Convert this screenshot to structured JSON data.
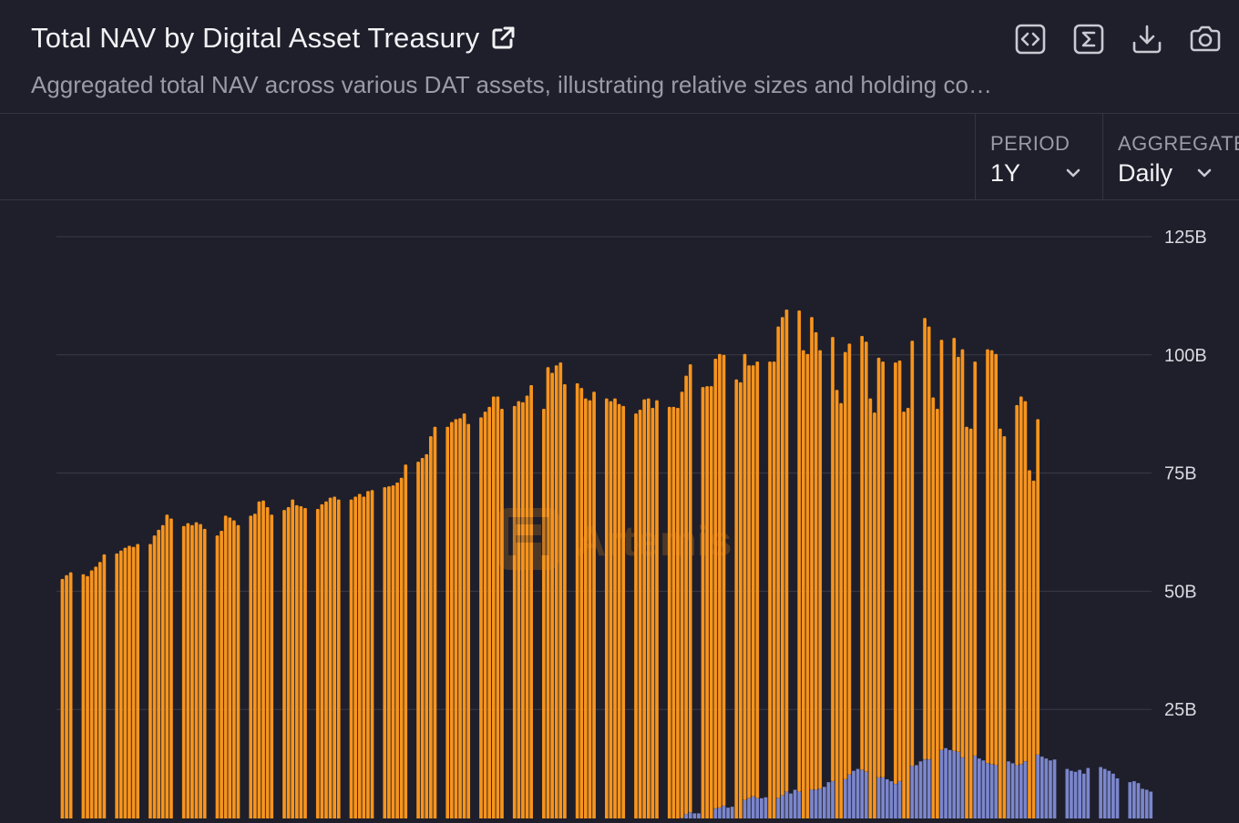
{
  "header": {
    "title": "Total NAV by Digital Asset Treasury",
    "subtitle": "Aggregated total NAV across various DAT assets, illustrating relative sizes and holding co…",
    "icons": [
      "external-link-icon",
      "embed-code-icon",
      "sigma-icon",
      "download-icon",
      "camera-icon"
    ]
  },
  "controls": {
    "period": {
      "label": "PERIOD",
      "value": "1Y"
    },
    "aggregate": {
      "label": "AGGREGATE",
      "value": "Daily"
    }
  },
  "watermark": "Artemis",
  "colors": {
    "background": "#1e1f2b",
    "series_orange": "#f7941d",
    "series_purple": "#7b86cc",
    "grid": "#3a3b46"
  },
  "chart_data": {
    "type": "bar",
    "stacked": true,
    "y_axis_position": "right",
    "ylim": [
      0,
      125
    ],
    "yticks": [
      {
        "value": 25,
        "label": "25B"
      },
      {
        "value": 50,
        "label": "50B"
      },
      {
        "value": 75,
        "label": "75B"
      },
      {
        "value": 100,
        "label": "100B"
      },
      {
        "value": 125,
        "label": "125B"
      }
    ],
    "grid": true,
    "series": [
      {
        "color": "#7b86cc",
        "values": [
          0,
          0,
          0,
          0,
          0,
          0,
          0,
          0,
          0,
          0,
          0,
          0,
          0,
          0,
          0,
          0,
          0,
          0,
          0,
          0,
          0,
          0,
          0,
          0,
          0,
          0,
          0,
          0,
          0,
          0,
          0,
          0,
          0,
          0,
          0,
          0,
          0,
          0,
          0,
          0,
          0,
          0,
          0,
          0,
          0,
          0,
          0,
          0,
          0,
          0,
          0,
          0,
          0,
          0,
          0,
          0,
          0,
          0,
          0,
          0,
          0,
          0,
          0,
          0,
          0,
          0,
          0,
          0,
          0,
          0,
          0,
          0,
          0,
          0,
          0,
          0,
          0,
          0,
          0,
          0,
          0,
          0,
          0,
          0,
          0,
          0,
          0,
          0,
          0,
          0,
          0,
          0,
          0,
          0,
          0,
          0,
          0,
          0,
          0,
          0,
          0,
          0,
          0,
          0,
          0,
          0,
          0,
          0,
          0,
          0,
          0,
          0,
          0,
          0,
          0,
          0,
          0,
          0,
          0,
          0,
          0,
          0,
          0,
          0,
          0,
          0,
          0,
          0,
          0,
          0,
          0,
          0,
          0,
          0,
          0,
          0,
          0,
          0,
          0,
          0,
          0,
          0,
          0,
          0,
          0,
          0,
          0,
          0,
          0,
          2.0,
          2.8,
          3.2,
          3.0,
          3.0,
          0,
          0,
          0,
          4.0,
          4.2,
          4.6,
          4.2,
          4.4,
          0,
          0,
          5.8,
          6.2,
          6.6,
          6.2,
          6.2,
          6.4,
          0,
          0,
          6.2,
          6.8,
          7.6,
          7.2,
          8.0,
          7.6,
          0,
          0,
          8.0,
          8.0,
          8.2,
          8.6,
          9.6,
          9.8,
          0,
          0,
          10.2,
          11.2,
          12.0,
          12.4,
          12.2,
          11.8,
          0,
          0,
          10.6,
          10.6,
          10.2,
          9.8,
          9.2,
          9.8,
          0,
          0,
          13.0,
          13.2,
          14.0,
          14.4,
          14.4,
          0,
          0,
          16.4,
          16.8,
          16.4,
          16.2,
          16.0,
          14.8,
          0,
          0,
          15.2,
          14.6,
          14.2,
          13.6,
          13.4,
          13.2,
          0,
          0,
          14.0,
          13.6,
          13.2,
          13.4,
          14.0,
          0,
          0,
          15.4,
          15.0,
          14.6,
          14.2,
          14.4,
          0,
          0,
          12.4,
          12.0,
          11.8,
          12.2,
          11.4,
          12.6,
          0,
          0,
          12.8,
          12.4,
          12.0,
          11.4,
          10.4,
          0,
          0,
          9.6,
          9.8,
          9.4,
          8.2,
          8.0,
          7.6
        ]
      },
      {
        "color": "#f7941d",
        "values": [
          0,
          52.6,
          53.4,
          54.0,
          0,
          0,
          53.6,
          53.2,
          54.4,
          55.2,
          56.2,
          57.8,
          0,
          0,
          58.0,
          58.6,
          59.2,
          59.6,
          59.4,
          60.0,
          0,
          0,
          60.0,
          61.8,
          63.0,
          64.0,
          66.2,
          65.4,
          0,
          0,
          63.8,
          64.4,
          64.0,
          64.6,
          64.2,
          63.2,
          0,
          0,
          61.8,
          62.8,
          66.0,
          65.6,
          65.0,
          64.0,
          0,
          0,
          66.0,
          66.4,
          69.0,
          69.2,
          67.8,
          66.2,
          0,
          0,
          67.2,
          67.8,
          69.4,
          68.2,
          68.0,
          67.6,
          0,
          0,
          67.4,
          68.4,
          69.0,
          69.8,
          70.0,
          69.4,
          0,
          0,
          69.4,
          70.0,
          70.6,
          70.0,
          71.2,
          71.4,
          0,
          0,
          72.0,
          72.2,
          72.4,
          73.0,
          74.0,
          76.8,
          0,
          0,
          77.4,
          78.2,
          79.0,
          82.8,
          84.8,
          0,
          0,
          84.8,
          85.8,
          86.4,
          86.6,
          87.6,
          85.4,
          0,
          0,
          86.8,
          88.0,
          89.0,
          91.2,
          91.2,
          88.6,
          0,
          0,
          89.2,
          90.2,
          90.0,
          91.4,
          93.6,
          0,
          0,
          88.6,
          97.4,
          96.2,
          97.8,
          98.4,
          93.8,
          0,
          0,
          94.0,
          93.0,
          90.8,
          90.4,
          92.2,
          0,
          0,
          90.8,
          90.2,
          90.8,
          89.6,
          89.2,
          0,
          0,
          87.6,
          88.4,
          90.6,
          90.8,
          88.8,
          90.4,
          0,
          0,
          89.0,
          89.0,
          88.8,
          90.2,
          92.8,
          94.8,
          0,
          0,
          93.2,
          93.4,
          93.4,
          95.2,
          96.0,
          95.4,
          0,
          0,
          94.8,
          94.2,
          94.4,
          91.6,
          91.2,
          92.4,
          0,
          0,
          98.6,
          98.6,
          99.8,
          101.2,
          102.0,
          0,
          0,
          101.8,
          101.0,
          100.2,
          100.0,
          96.8,
          92.8,
          0,
          0,
          94.0,
          92.6,
          89.8,
          90.4,
          91.2,
          0,
          0,
          91.8,
          91.0,
          90.8,
          87.8,
          88.8,
          88.0,
          0,
          0,
          89.2,
          89.0,
          88.0,
          88.8,
          90.0,
          0,
          0,
          93.4,
          91.6,
          91.0,
          88.6,
          86.8,
          0,
          0,
          87.4,
          83.6,
          86.4,
          84.8,
          84.4,
          83.4,
          0,
          0,
          87.6,
          87.6,
          87.0,
          84.4,
          82.8,
          0,
          0,
          76.2,
          77.8,
          76.2,
          75.6,
          73.4,
          71.0
        ]
      }
    ]
  }
}
